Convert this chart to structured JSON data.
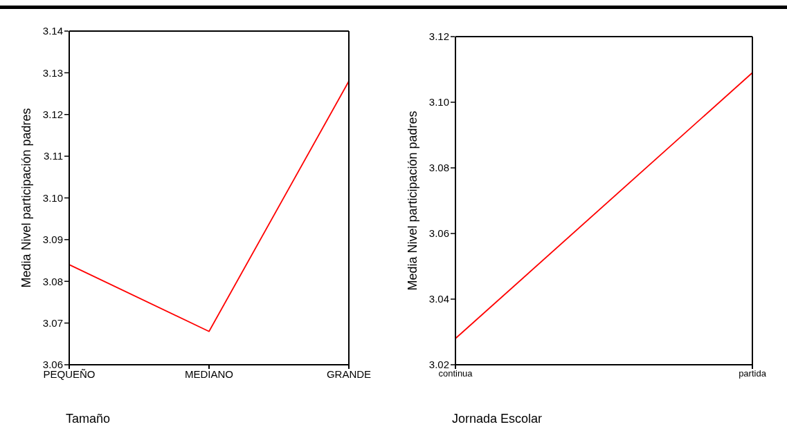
{
  "chart_data": [
    {
      "type": "line",
      "categories": [
        "PEQUEÑO",
        "MEDIANO",
        "GRANDE"
      ],
      "xlabel": "Tamaño",
      "ylabel": "Media Nivel participación padres",
      "ylim": [
        3.06,
        3.14
      ],
      "yticks": [
        3.06,
        3.07,
        3.08,
        3.09,
        {
          "value": 3.1,
          "label": "3.10"
        },
        3.11,
        3.12,
        3.13,
        3.14
      ],
      "legend": false,
      "marker": "none",
      "line_style": "solid",
      "series": [
        {
          "color": "#ff0000",
          "values": [
            3.084,
            3.068,
            3.128
          ]
        }
      ]
    },
    {
      "type": "line",
      "categories": [
        "continua",
        "partida"
      ],
      "xlabel": "Jornada Escolar",
      "ylabel": "Media Nivel participación padres",
      "ylim": [
        3.02,
        3.12
      ],
      "yticks": [
        3.02,
        3.04,
        3.06,
        3.08,
        {
          "value": 3.1,
          "label": "3.10"
        },
        3.12
      ],
      "legend": false,
      "marker": "none",
      "line_style": "solid",
      "series": [
        {
          "color": "#ff0000",
          "values": [
            3.028,
            3.109
          ]
        }
      ]
    }
  ]
}
